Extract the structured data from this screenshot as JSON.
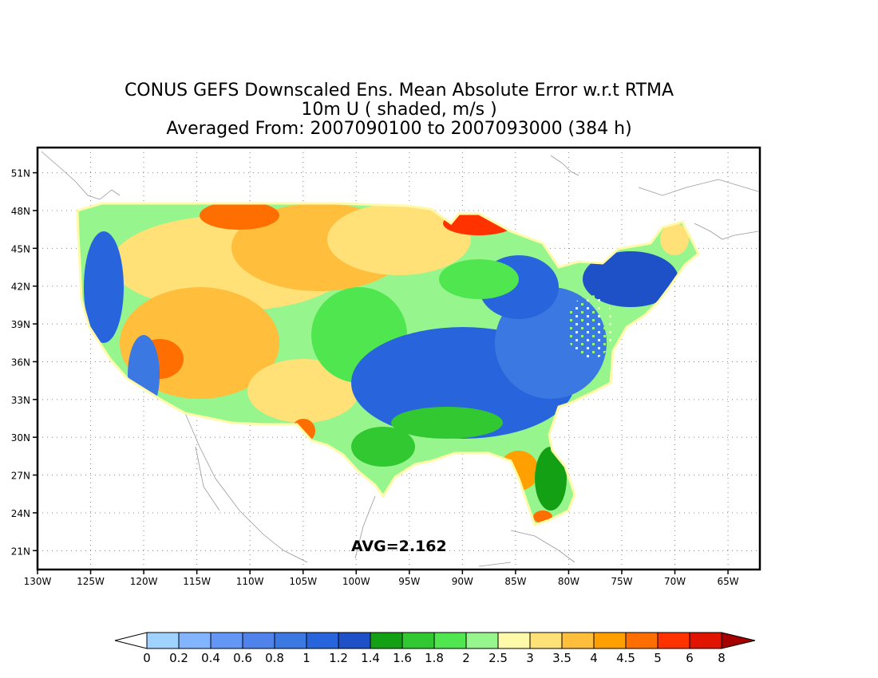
{
  "title": {
    "line1": "CONUS GEFS Downscaled Ens. Mean Absolute Error w.r.t RTMA",
    "line2": "10m U ( shaded, m/s )",
    "line3": "Averaged From: 2007090100 to 2007093000 (384 h)"
  },
  "avg_label": "AVG=2.162",
  "map": {
    "lon_range": [
      -130,
      -62
    ],
    "lat_range": [
      19.5,
      53
    ],
    "lat_ticks": [
      {
        "value": 21,
        "label": "21N"
      },
      {
        "value": 24,
        "label": "24N"
      },
      {
        "value": 27,
        "label": "27N"
      },
      {
        "value": 30,
        "label": "30N"
      },
      {
        "value": 33,
        "label": "33N"
      },
      {
        "value": 36,
        "label": "36N"
      },
      {
        "value": 39,
        "label": "39N"
      },
      {
        "value": 42,
        "label": "42N"
      },
      {
        "value": 45,
        "label": "45N"
      },
      {
        "value": 48,
        "label": "48N"
      },
      {
        "value": 51,
        "label": "51N"
      }
    ],
    "lon_ticks": [
      {
        "value": -130,
        "label": "130W"
      },
      {
        "value": -125,
        "label": "125W"
      },
      {
        "value": -120,
        "label": "120W"
      },
      {
        "value": -115,
        "label": "115W"
      },
      {
        "value": -110,
        "label": "110W"
      },
      {
        "value": -105,
        "label": "105W"
      },
      {
        "value": -100,
        "label": "100W"
      },
      {
        "value": -95,
        "label": "95W"
      },
      {
        "value": -90,
        "label": "90W"
      },
      {
        "value": -85,
        "label": "85W"
      },
      {
        "value": -80,
        "label": "80W"
      },
      {
        "value": -75,
        "label": "75W"
      },
      {
        "value": -70,
        "label": "70W"
      },
      {
        "value": -65,
        "label": "65W"
      }
    ],
    "grid": true
  },
  "colorbar": {
    "under_color": "#ffffff",
    "over_color": "#a50000",
    "bins": [
      {
        "color": "#a0d2ff"
      },
      {
        "color": "#82b4ff"
      },
      {
        "color": "#6496f5"
      },
      {
        "color": "#5082eb"
      },
      {
        "color": "#3c78e1"
      },
      {
        "color": "#2864dc"
      },
      {
        "color": "#1e50c8"
      },
      {
        "color": "#14a014"
      },
      {
        "color": "#32c832"
      },
      {
        "color": "#50e650"
      },
      {
        "color": "#96f58c"
      },
      {
        "color": "#fffaaa"
      },
      {
        "color": "#ffe178"
      },
      {
        "color": "#ffbe3c"
      },
      {
        "color": "#ffa000"
      },
      {
        "color": "#ff6e00"
      },
      {
        "color": "#ff3200"
      },
      {
        "color": "#e11400"
      }
    ],
    "labels": [
      "0",
      "0.2",
      "0.4",
      "0.6",
      "0.8",
      "1",
      "1.2",
      "1.4",
      "1.6",
      "1.8",
      "2",
      "2.5",
      "3",
      "3.5",
      "4",
      "4.5",
      "5",
      "6",
      "8"
    ]
  }
}
